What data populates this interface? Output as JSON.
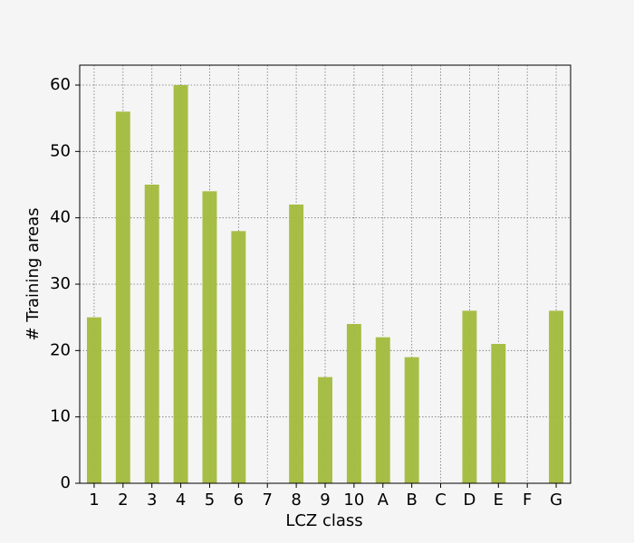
{
  "chart_data": {
    "type": "bar",
    "x_label": "LCZ class",
    "y_label": "# Training areas",
    "categories": [
      "1",
      "2",
      "3",
      "4",
      "5",
      "6",
      "7",
      "8",
      "9",
      "10",
      "A",
      "B",
      "C",
      "D",
      "E",
      "F",
      "G"
    ],
    "values": [
      25,
      56,
      45,
      60,
      44,
      38,
      0,
      42,
      16,
      24,
      22,
      19,
      0,
      26,
      21,
      0,
      26
    ],
    "color": "#a2ba3c",
    "ylim": [
      0,
      63
    ],
    "yticks": [
      0,
      10,
      20,
      30,
      40,
      50,
      60
    ],
    "grid": true
  }
}
